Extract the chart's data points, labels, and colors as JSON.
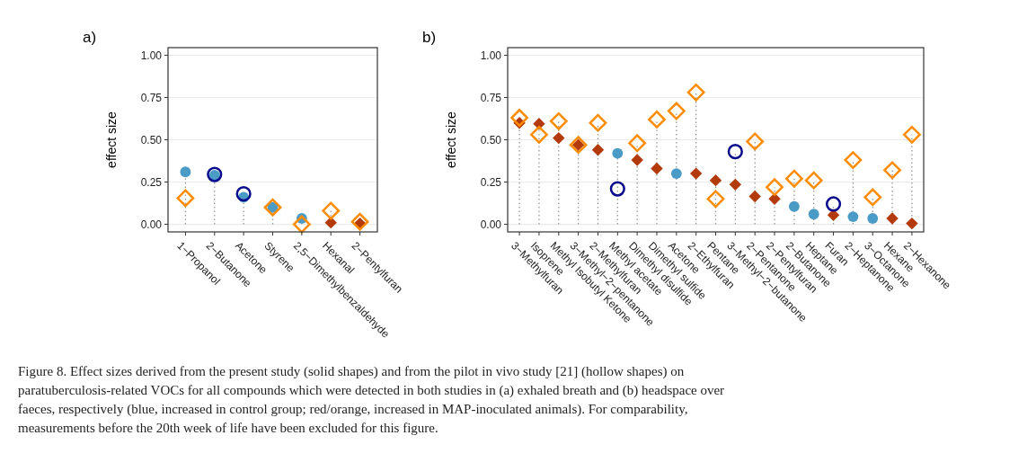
{
  "chart_data": [
    {
      "type": "scatter",
      "title": "a)",
      "ylabel": "effect size",
      "categories": [
        "1−Propanol",
        "2−Butanone",
        "Acetone",
        "Styrene",
        "2,5−Dimethylbenzaldehyde",
        "Hexanal",
        "2−Pentylfuran"
      ],
      "ylim": [
        -0.045,
        1.045
      ],
      "yticks": [
        {
          "value": 0,
          "label": "0.00"
        },
        {
          "value": 0.25,
          "label": "0.25"
        },
        {
          "value": 0.5,
          "label": "0.50"
        },
        {
          "value": 0.75,
          "label": "0.75"
        },
        {
          "value": 1,
          "label": "1.00"
        }
      ],
      "grid": "y",
      "series": [
        {
          "color": "#4a9cc7",
          "marker": "circle",
          "x": [
            "1−Propanol",
            "2−Butanone",
            "Acetone",
            "Styrene",
            "2,5−Dimethylbenzaldehyde"
          ],
          "values": [
            0.31,
            0.29,
            0.16,
            0.1,
            0.035
          ]
        },
        {
          "color": "#b33a0a",
          "marker": "diamond",
          "x": [
            "Hexanal",
            "2−Pentylfuran"
          ],
          "values": [
            0.01,
            0.005
          ]
        },
        {
          "color": "#0a0a8c",
          "marker": "circle",
          "x": [
            "2−Butanone",
            "Acetone"
          ],
          "values": [
            0.295,
            0.18
          ]
        },
        {
          "color": "#ff8c00",
          "marker": "diamond",
          "x": [
            "1−Propanol",
            "Styrene",
            "2,5−Dimethylbenzaldehyde",
            "Hexanal",
            "2−Pentylfuran"
          ],
          "values": [
            0.155,
            0.1,
            0.0,
            0.08,
            0.015
          ]
        }
      ]
    },
    {
      "type": "scatter",
      "title": "b)",
      "ylabel": "effect size",
      "categories": [
        "3−Methylfuran",
        "Isoprene",
        "Methyl Isobutyl Ketone",
        "3−Methyl−2−pentanone",
        "2−Methylfuran",
        "Methyl acetate",
        "Dimethyl disulfide",
        "Dimethyl sulfide",
        "Acetone",
        "2−Ethylfuran",
        "Pentane",
        "3−Methyl−2−butanone",
        "2−Pentanone",
        "2−Pentylfuran",
        "2−Butanone",
        "Heptane",
        "Furan",
        "2−Heptanone",
        "3−Octanone",
        "Hexane",
        "2−Hexanone"
      ],
      "ylim": [
        -0.045,
        1.045
      ],
      "yticks": [
        {
          "value": 0,
          "label": "0.00"
        },
        {
          "value": 0.25,
          "label": "0.25"
        },
        {
          "value": 0.5,
          "label": "0.50"
        },
        {
          "value": 0.75,
          "label": "0.75"
        },
        {
          "value": 1,
          "label": "1.00"
        }
      ],
      "grid": "y",
      "series": [
        {
          "color": "#4a9cc7",
          "marker": "circle",
          "x": [
            "Methyl acetate",
            "Acetone",
            "2−Butanone",
            "Heptane",
            "2−Heptanone",
            "3−Octanone"
          ],
          "values": [
            0.42,
            0.3,
            0.105,
            0.06,
            0.045,
            0.035
          ]
        },
        {
          "color": "#b33a0a",
          "marker": "diamond",
          "x": [
            "3−Methylfuran",
            "Isoprene",
            "Methyl Isobutyl Ketone",
            "3−Methyl−2−pentanone",
            "2−Methylfuran",
            "Dimethyl disulfide",
            "Dimethyl sulfide",
            "2−Ethylfuran",
            "Pentane",
            "3−Methyl−2−butanone",
            "2−Pentanone",
            "2−Pentylfuran",
            "Furan",
            "Hexane",
            "2−Hexanone"
          ],
          "values": [
            0.6,
            0.595,
            0.51,
            0.47,
            0.44,
            0.38,
            0.33,
            0.3,
            0.26,
            0.235,
            0.165,
            0.15,
            0.055,
            0.035,
            0.005
          ]
        },
        {
          "color": "#0a0a8c",
          "marker": "circle",
          "x": [
            "Methyl acetate",
            "3−Methyl−2−butanone",
            "Furan"
          ],
          "values": [
            0.21,
            0.43,
            0.12
          ]
        },
        {
          "color": "#ff8c00",
          "marker": "diamond",
          "x": [
            "3−Methylfuran",
            "Isoprene",
            "Methyl Isobutyl Ketone",
            "3−Methyl−2−pentanone",
            "2−Methylfuran",
            "Dimethyl disulfide",
            "Dimethyl sulfide",
            "Acetone",
            "2−Ethylfuran",
            "Pentane",
            "2−Pentanone",
            "2−Pentylfuran",
            "2−Butanone",
            "Heptane",
            "2−Heptanone",
            "3−Octanone",
            "Hexane",
            "2−Hexanone"
          ],
          "values": [
            0.63,
            0.53,
            0.61,
            0.47,
            0.6,
            0.48,
            0.62,
            0.67,
            0.78,
            0.15,
            0.49,
            0.22,
            0.27,
            0.26,
            0.38,
            0.16,
            0.32,
            0.53
          ]
        }
      ],
      "annotations": [
        "Figure 8. Effect sizes derived from the present study (solid shapes) and from the pilot in vivo study [21] (hollow shapes) on",
        "paratuberculosis-related VOCs for all compounds which were detected in both studies in (a) exhaled breath and (b) headspace over",
        "faeces, respectively (blue, increased in control group; red/orange, increased in MAP-inoculated animals). For comparability,",
        "measurements before the 20th week of life have been excluded for this figure."
      ]
    }
  ]
}
